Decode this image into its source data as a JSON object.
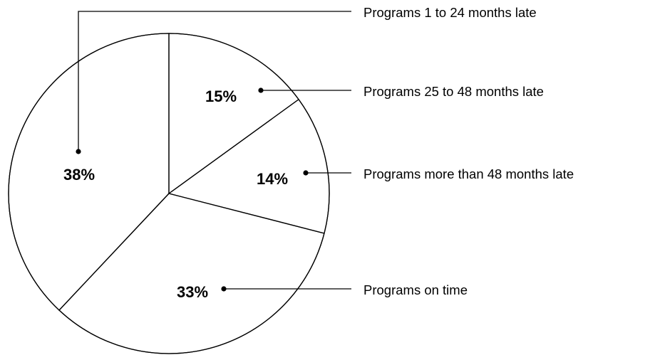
{
  "chart_data": {
    "type": "pie",
    "slices": [
      {
        "label": "Programs 25 to 48 months late",
        "value": 15,
        "value_label": "15%"
      },
      {
        "label": "Programs more than 48 months late",
        "value": 14,
        "value_label": "14%"
      },
      {
        "label": "Programs on time",
        "value": 33,
        "value_label": "33%"
      },
      {
        "label": "Programs 1 to 24 months late",
        "value": 38,
        "value_label": "38%"
      }
    ],
    "start_angle": "12 o'clock",
    "direction": "clockwise",
    "fill": "none",
    "line_color": "#000000",
    "legend": "right, leader lines to slices"
  }
}
